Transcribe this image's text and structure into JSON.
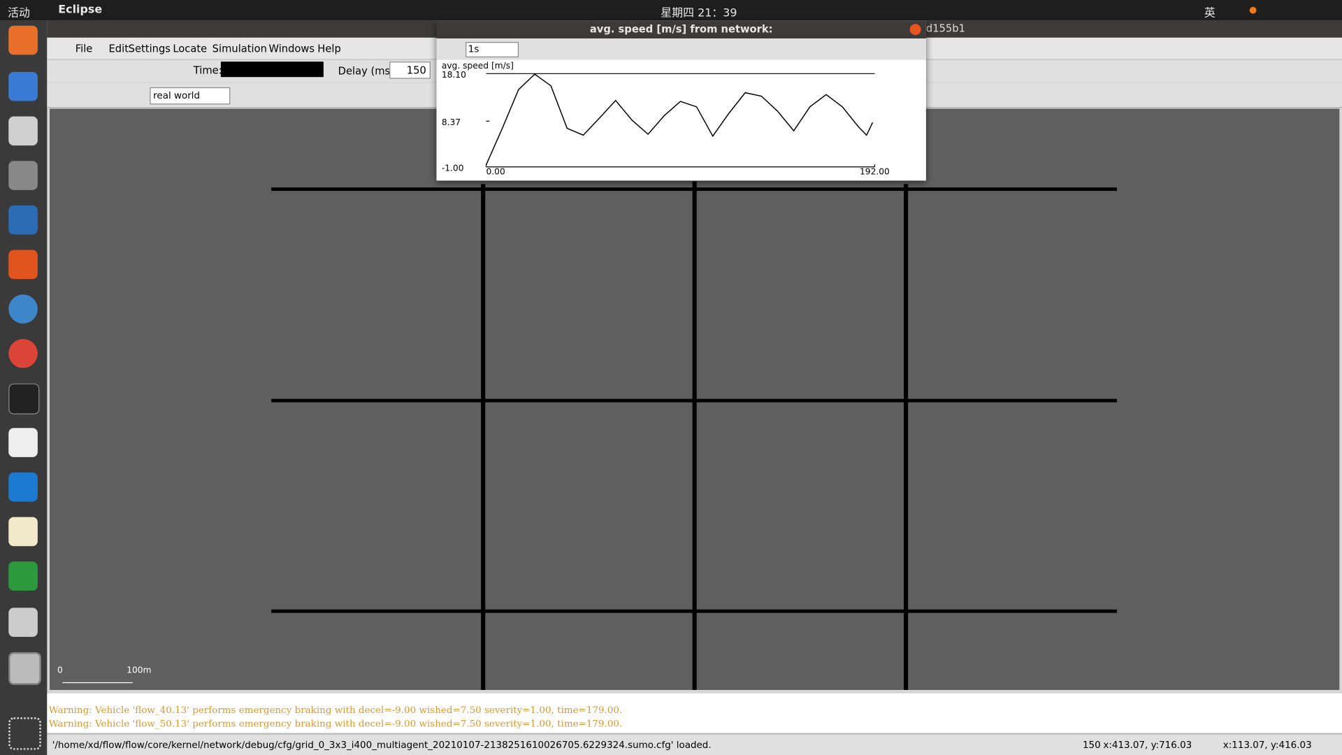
{
  "topbar": {
    "activities": "活动",
    "app": "Eclipse",
    "clock": "星期四 21：39",
    "ime": "英"
  },
  "window": {
    "title_right": "d155b1"
  },
  "menu": [
    "File",
    "Edit",
    "Settings",
    "Locate",
    "Simulation",
    "Windows",
    "Help"
  ],
  "toolbar": {
    "time_label": "Time:",
    "delay_label": "Delay (ms):",
    "delay_value": "150",
    "viewport": "real world"
  },
  "scale": {
    "start": "0",
    "end": "100m"
  },
  "log": [
    "Warning: Vehicle 'flow_40.13' performs emergency braking with decel=-9.00 wished=7.50 severity=1.00, time=179.00.",
    "Warning: Vehicle 'flow_50.13' performs emergency braking with decel=-9.00 wished=7.50 severity=1.00, time=179.00."
  ],
  "status": {
    "message": "'/home/xd/flow/flow/core/kernel/network/debug/cfg/grid_0_3x3_i400_multiagent_20210107-2138251610026705.6229324.sumo.cfg' loaded.",
    "vehicles": "150",
    "pos1": "x:413.07, y:716.03",
    "pos2": "x:113.07, y:416.03"
  },
  "popup": {
    "title": "avg. speed [m/s] from network:",
    "interval": "1s"
  },
  "chart_data": {
    "type": "line",
    "y_label": "avg. speed [m/s]",
    "x": [
      0,
      8,
      16,
      24,
      32,
      40,
      48,
      56,
      64,
      72,
      80,
      88,
      96,
      104,
      112,
      120,
      128,
      136,
      144,
      152,
      160,
      168,
      176,
      184,
      188,
      191
    ],
    "series": [
      {
        "color": "#000000",
        "values": [
          -0.6,
          6.9,
          14.8,
          18.0,
          15.6,
          6.9,
          5.5,
          9.0,
          12.6,
          8.6,
          5.7,
          9.5,
          12.4,
          11.3,
          5.3,
          10.0,
          14.2,
          13.5,
          10.4,
          6.4,
          11.3,
          13.8,
          11.3,
          7.2,
          5.5,
          8.1
        ]
      }
    ],
    "xlim": [
      0,
      192
    ],
    "ylim": [
      -1,
      18.1
    ],
    "xticks": [
      {
        "value": 0,
        "label": "0.00"
      },
      {
        "value": 192,
        "label": "192.00"
      }
    ],
    "yticks": [
      {
        "value": -1,
        "label": "-1.00"
      },
      {
        "value": 8.37,
        "label": "8.37"
      },
      {
        "value": 18.1,
        "label": "18.10"
      }
    ]
  }
}
